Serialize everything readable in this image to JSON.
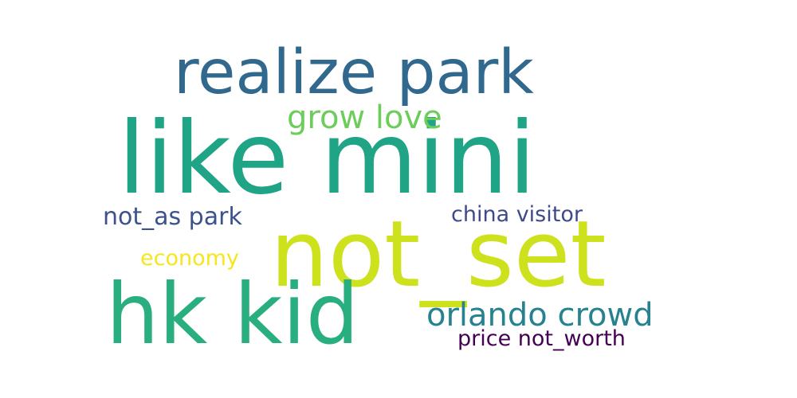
{
  "words": [
    {
      "text": "realize park",
      "color": "#31688e"
    },
    {
      "text": "like mini",
      "color": "#20a486"
    },
    {
      "text": "grow love",
      "color": "#6ccd5a"
    },
    {
      "text": "not_set",
      "color": "#cde11d"
    },
    {
      "text": "not_as park",
      "color": "#3b528b"
    },
    {
      "text": "china visitor",
      "color": "#3e4a89"
    },
    {
      "text": "economy",
      "color": "#f5e61e"
    },
    {
      "text": "hk kid",
      "color": "#29af7f"
    },
    {
      "text": "orlando crowd",
      "color": "#26828e"
    },
    {
      "text": "price not_worth",
      "color": "#440154"
    }
  ]
}
